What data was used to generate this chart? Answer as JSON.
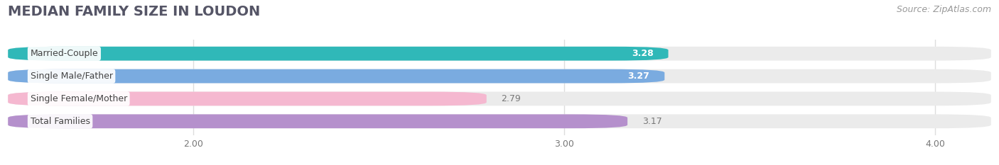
{
  "title": "MEDIAN FAMILY SIZE IN LOUDON",
  "source": "Source: ZipAtlas.com",
  "categories": [
    "Married-Couple",
    "Single Male/Father",
    "Single Female/Mother",
    "Total Families"
  ],
  "values": [
    3.28,
    3.27,
    2.79,
    3.17
  ],
  "bar_colors": [
    "#30b8b8",
    "#7aabe0",
    "#f5b8d0",
    "#b590cc"
  ],
  "value_colors": [
    "white",
    "white",
    "#777777",
    "#777777"
  ],
  "xmin": 1.5,
  "xmax": 4.15,
  "xticks": [
    2.0,
    3.0,
    4.0
  ],
  "xtick_labels": [
    "2.00",
    "3.00",
    "4.00"
  ],
  "bar_height": 0.62,
  "background_color": "#ffffff",
  "bar_bg_color": "#ebebeb",
  "title_fontsize": 14,
  "source_fontsize": 9,
  "label_fontsize": 9,
  "value_fontsize": 9,
  "tick_fontsize": 9,
  "grid_color": "#dddddd"
}
